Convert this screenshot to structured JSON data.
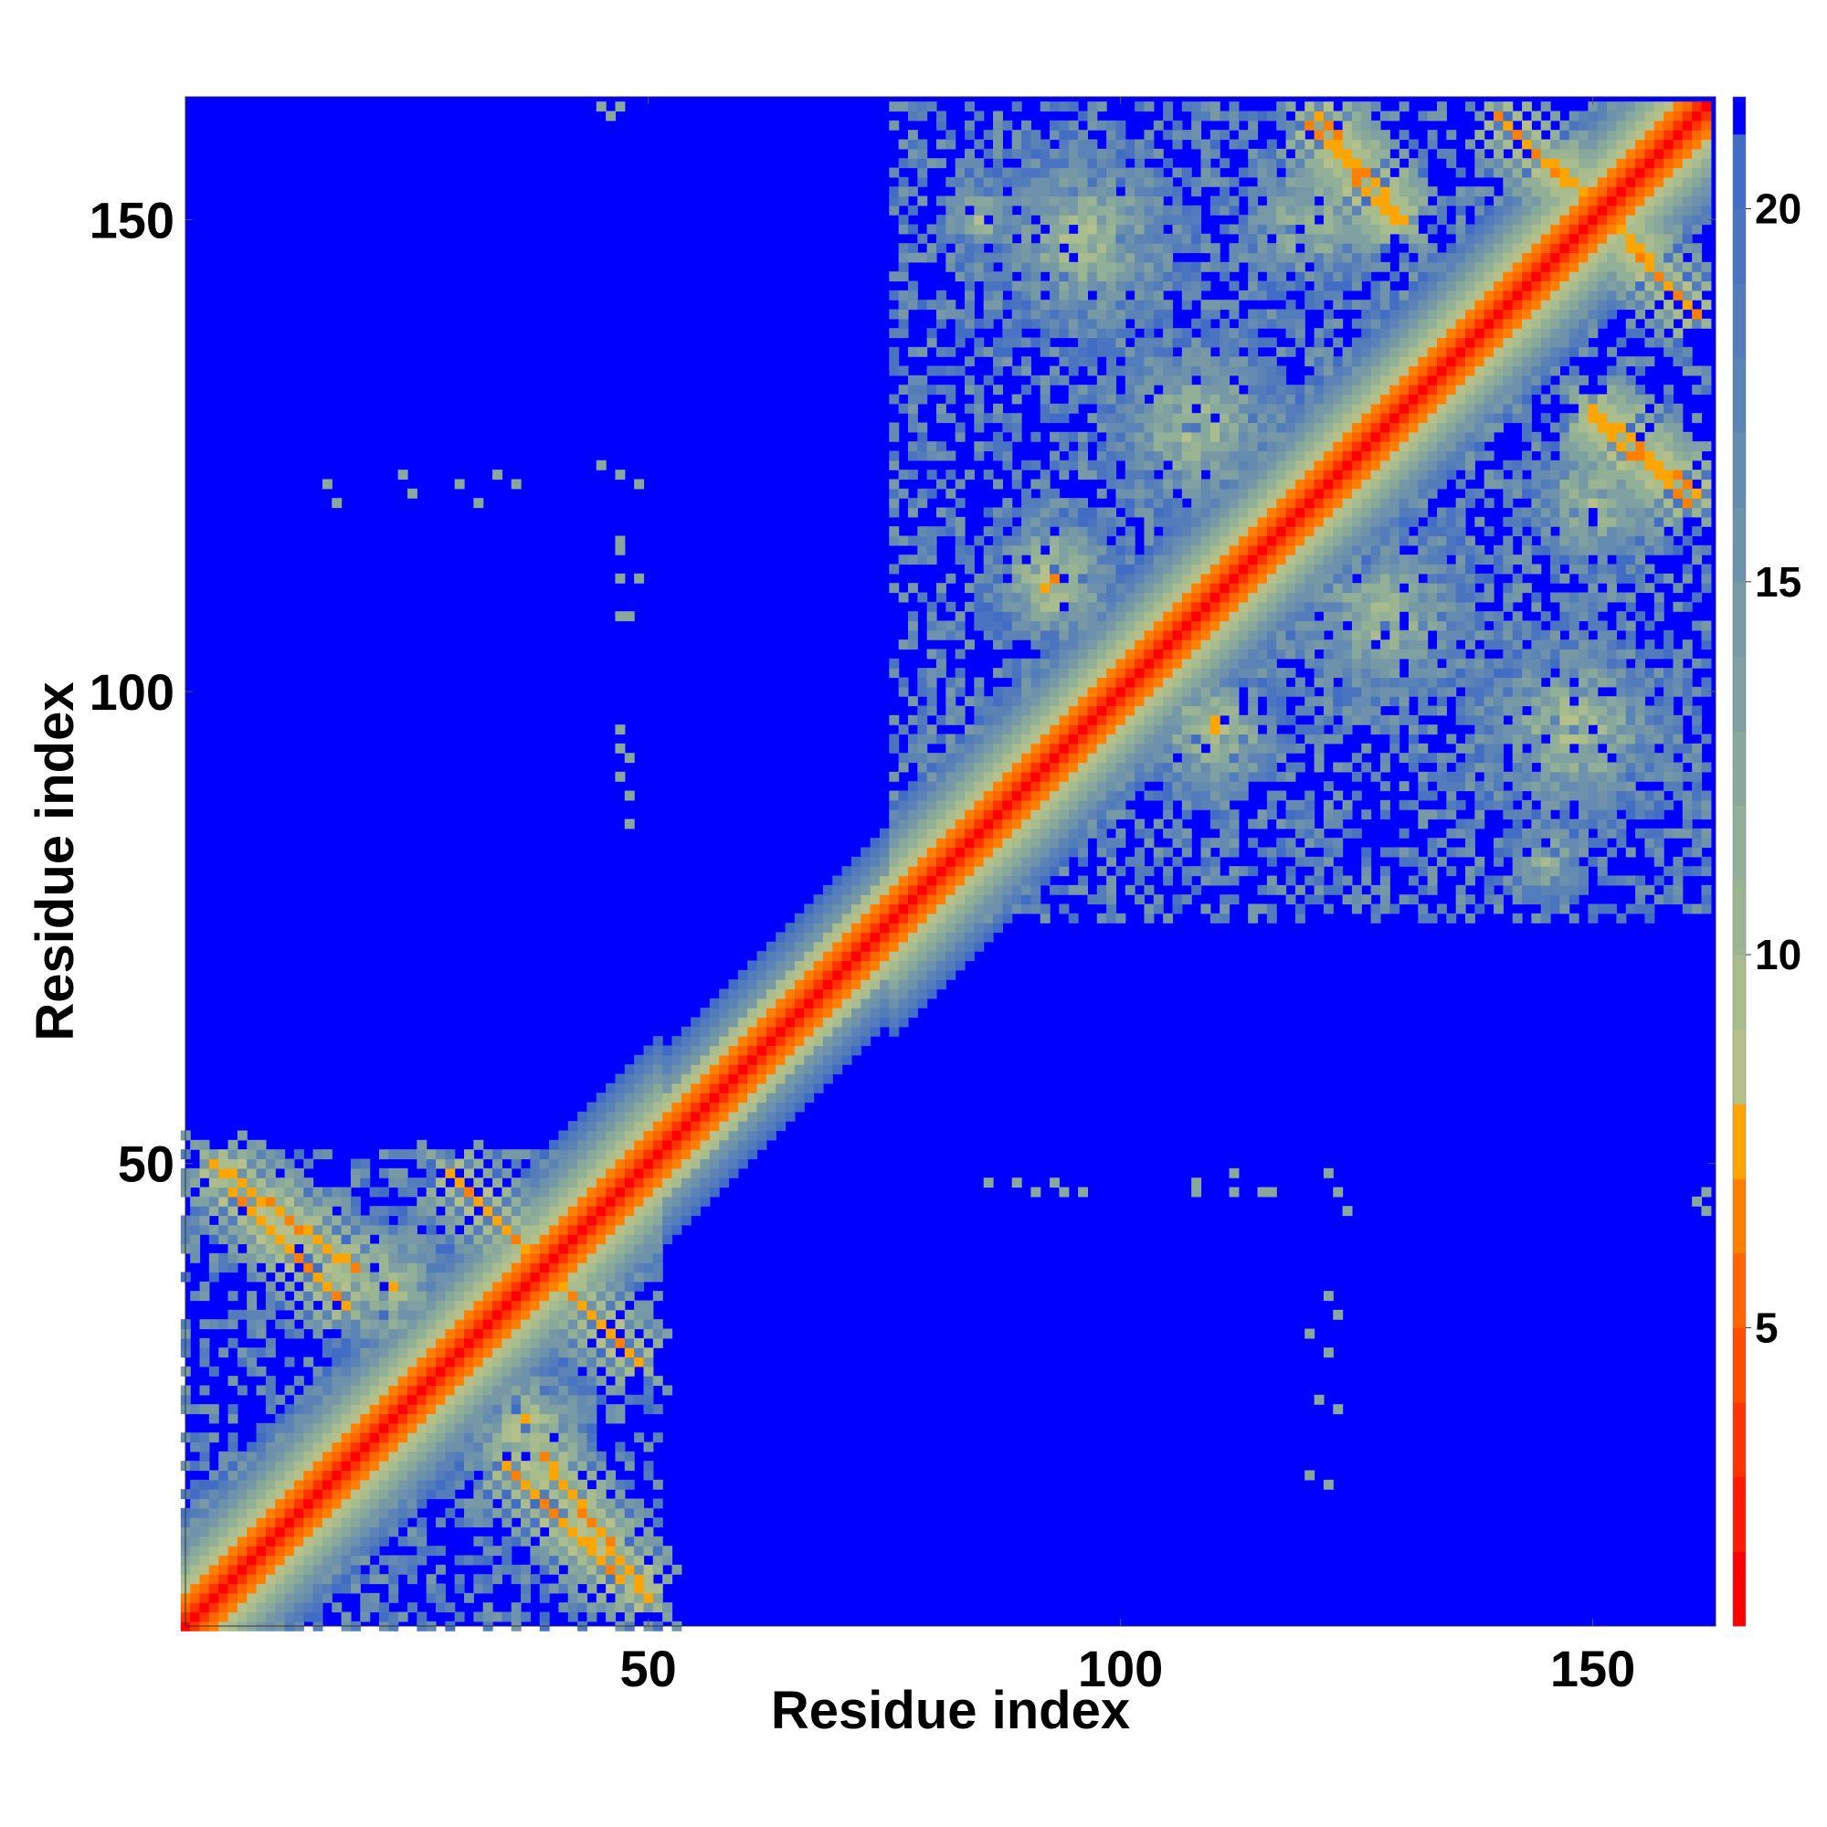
{
  "chart_data": {
    "type": "heatmap",
    "title": "",
    "xlabel": "Residue index",
    "ylabel": "Residue index",
    "n_residues": 162,
    "xlim": [
      1,
      163
    ],
    "ylim": [
      1,
      163
    ],
    "x_ticks": [
      50,
      100,
      150
    ],
    "y_ticks": [
      50,
      100,
      150
    ],
    "colorbar": {
      "ticks": [
        5,
        10,
        15,
        20
      ],
      "range": [
        1,
        21.5
      ],
      "levels": [
        {
          "max": 2,
          "color": "#ff0000"
        },
        {
          "max": 3,
          "color": "#ff1a00"
        },
        {
          "max": 4,
          "color": "#ff3300"
        },
        {
          "max": 5,
          "color": "#ff4d00"
        },
        {
          "max": 6,
          "color": "#ff6600"
        },
        {
          "max": 7,
          "color": "#ff8000"
        },
        {
          "max": 8,
          "color": "#ffa500"
        },
        {
          "max": 9,
          "color": "#b6c08a"
        },
        {
          "max": 10,
          "color": "#a8bc8e"
        },
        {
          "max": 11,
          "color": "#9bb592"
        },
        {
          "max": 12,
          "color": "#92b097"
        },
        {
          "max": 13,
          "color": "#89a89c"
        },
        {
          "max": 14,
          "color": "#80a1a1"
        },
        {
          "max": 15,
          "color": "#7799a6"
        },
        {
          "max": 16,
          "color": "#6e92ab"
        },
        {
          "max": 17,
          "color": "#658bb0"
        },
        {
          "max": 18,
          "color": "#5c83b5"
        },
        {
          "max": 19,
          "color": "#537cba"
        },
        {
          "max": 20,
          "color": "#4a74bf"
        },
        {
          "max": 21,
          "color": "#416dc4"
        },
        {
          "max": 21.5,
          "color": "#0000ff"
        }
      ]
    },
    "background_color": "#0000ff",
    "cutoff": 21,
    "matrix_description": "symmetric residue-residue distance map (Angstrom), cells beyond cutoff shown in blue",
    "features": {
      "diagonal": {
        "start": 1,
        "end": 162,
        "values_by_offset": [
          0.5,
          3.8,
          5.4,
          6.6,
          8.5,
          10.0,
          11.5,
          13.0,
          14.5,
          16.0,
          17.5,
          19.0,
          20.5
        ]
      },
      "domain_1": {
        "range": [
          1,
          51
        ]
      },
      "domain_2": {
        "range": [
          76,
          162
        ]
      },
      "antiparallel_contacts": [
        {
          "i": [
            6,
            18
          ],
          "j": [
            47,
            35
          ],
          "min_value": 6.5
        },
        {
          "i": [
            29,
            40
          ],
          "j": [
            49,
            38
          ],
          "min_value": 6.5
        },
        {
          "i": [
            39,
            50
          ],
          "j": [
            19,
            4
          ],
          "min_value": 6.5
        },
        {
          "i": [
            121,
            130
          ],
          "j": [
            161,
            150
          ],
          "min_value": 6.5
        },
        {
          "i": [
            140,
            156
          ],
          "j": [
            161,
            146
          ],
          "min_value": 6.5
        },
        {
          "i": [
            150,
            160
          ],
          "j": [
            129,
            120
          ],
          "min_value": 6.5
        }
      ],
      "patches": [
        {
          "cx": 93,
          "cy": 112,
          "r": 9,
          "min_value": 7
        },
        {
          "cx": 110,
          "cy": 96,
          "r": 9,
          "min_value": 7
        },
        {
          "cx": 108,
          "cy": 128,
          "r": 12,
          "min_value": 9
        },
        {
          "cx": 128,
          "cy": 108,
          "r": 12,
          "min_value": 9
        },
        {
          "cx": 96,
          "cy": 148,
          "r": 13,
          "min_value": 9
        },
        {
          "cx": 148,
          "cy": 96,
          "r": 13,
          "min_value": 9
        },
        {
          "cx": 120,
          "cy": 150,
          "r": 9,
          "min_value": 9
        },
        {
          "cx": 150,
          "cy": 120,
          "r": 9,
          "min_value": 9
        },
        {
          "cx": 85,
          "cy": 150,
          "r": 5,
          "min_value": 9
        },
        {
          "cx": 145,
          "cy": 82,
          "r": 5,
          "min_value": 9
        },
        {
          "cx": 22,
          "cy": 37,
          "r": 9,
          "min_value": 8
        },
        {
          "cx": 37,
          "cy": 22,
          "r": 9,
          "min_value": 8
        },
        {
          "cx": 10,
          "cy": 44,
          "r": 5,
          "min_value": 9
        },
        {
          "cx": 44,
          "cy": 10,
          "r": 5,
          "min_value": 9
        }
      ],
      "isolated_contacts": [
        [
          46,
          163
        ],
        [
          47,
          162
        ],
        [
          16,
          122
        ],
        [
          17,
          120
        ],
        [
          30,
          122
        ],
        [
          32,
          120
        ],
        [
          45,
          124
        ],
        [
          47,
          123
        ],
        [
          47,
          115
        ],
        [
          47,
          112
        ],
        [
          47,
          108
        ],
        [
          47,
          96
        ],
        [
          48,
          93
        ],
        [
          47,
          91
        ],
        [
          122,
          49
        ],
        [
          123,
          47
        ],
        [
          124,
          45
        ],
        [
          122,
          36
        ],
        [
          123,
          34
        ],
        [
          121,
          25
        ],
        [
          123,
          24
        ],
        [
          161,
          46
        ],
        [
          162,
          45
        ],
        [
          86,
          48
        ],
        [
          89,
          48
        ],
        [
          91,
          47
        ],
        [
          94,
          47
        ],
        [
          108,
          48
        ],
        [
          112,
          49
        ],
        [
          116,
          47
        ]
      ]
    }
  }
}
